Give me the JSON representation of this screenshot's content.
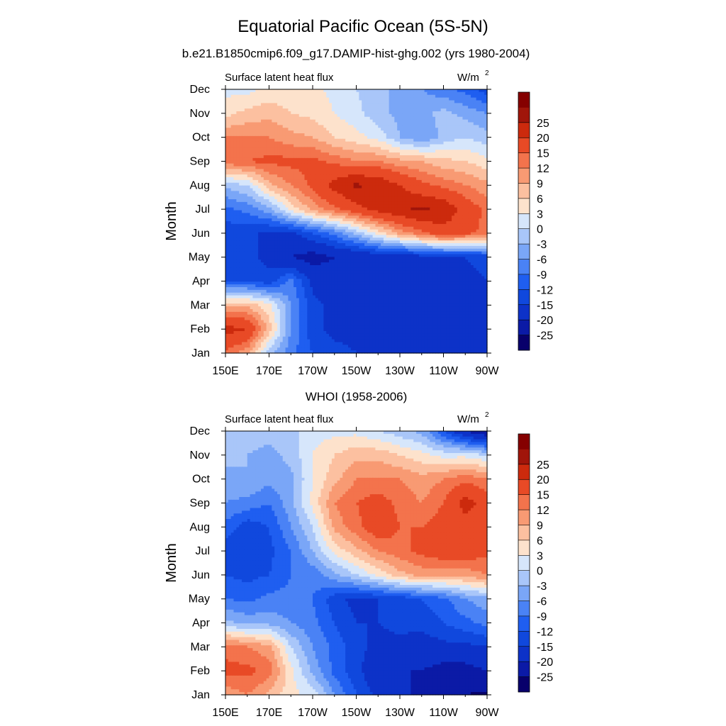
{
  "figure": {
    "title": "Equatorial Pacific Ocean (5S-5N)",
    "subtitle": "b.e21.B1850cmip6.f09_g17.DAMIP-hist-ghg.002 (yrs 1980-2004)"
  },
  "colorbar": {
    "levels": [
      -25,
      -20,
      -15,
      -12,
      -9,
      -6,
      -3,
      0,
      3,
      6,
      9,
      12,
      15,
      20,
      25
    ],
    "colors": [
      "#08006b",
      "#0b1aa6",
      "#0d32c8",
      "#1048dd",
      "#1f5ef0",
      "#4a82f5",
      "#7aa6f7",
      "#a9c6f9",
      "#d6e6fb",
      "#fde2cc",
      "#fcc0a0",
      "#f89a73",
      "#f3734c",
      "#e84a26",
      "#cc2a0d",
      "#a0150a",
      "#850000"
    ]
  },
  "chart_data": [
    {
      "type": "heatmap",
      "title": "",
      "left_label": "Surface latent heat flux",
      "units": "W/m",
      "units_superscript": "2",
      "xlabel": "",
      "ylabel": "Month",
      "x_ticks": [
        "150E",
        "170E",
        "170W",
        "150W",
        "130W",
        "110W",
        "90W"
      ],
      "xlim": [
        150,
        270
      ],
      "y_ticks": [
        "Jan",
        "Feb",
        "Mar",
        "Apr",
        "May",
        "Jun",
        "Jul",
        "Aug",
        "Sep",
        "Oct",
        "Nov",
        "Dec"
      ],
      "ylim": [
        1,
        12
      ],
      "x_grid": [
        150,
        160,
        170,
        180,
        190,
        200,
        210,
        220,
        230,
        240,
        250,
        260,
        270
      ],
      "values": [
        [
          14,
          10,
          -2,
          -8,
          -12,
          -14,
          -15,
          -16,
          -16,
          -16,
          -17,
          -18,
          -18
        ],
        [
          22,
          20,
          8,
          -6,
          -14,
          -16,
          -16,
          -18,
          -18,
          -18,
          -19,
          -19,
          -18
        ],
        [
          8,
          8,
          4,
          -6,
          -14,
          -16,
          -16,
          -16,
          -16,
          -16,
          -17,
          -17,
          -16
        ],
        [
          -12,
          -12,
          -14,
          -8,
          -16,
          -18,
          -18,
          -18,
          -18,
          -17,
          -16,
          -16,
          -15
        ],
        [
          -14,
          -14,
          -16,
          -20,
          -22,
          -20,
          -20,
          -18,
          -18,
          -17,
          -16,
          -15,
          -14
        ],
        [
          -14,
          -14,
          -16,
          -16,
          -12,
          -8,
          -2,
          4,
          10,
          14,
          18,
          16,
          14
        ],
        [
          -10,
          -8,
          -4,
          4,
          10,
          14,
          18,
          22,
          24,
          26,
          24,
          18,
          14
        ],
        [
          -2,
          0,
          8,
          12,
          16,
          22,
          26,
          24,
          20,
          16,
          14,
          12,
          10
        ],
        [
          14,
          15,
          16,
          16,
          16,
          14,
          12,
          12,
          10,
          9,
          7,
          6,
          4
        ],
        [
          12,
          12,
          12,
          10,
          9,
          6,
          4,
          2,
          -3,
          -6,
          -2,
          0,
          -2
        ],
        [
          5,
          7,
          8,
          6,
          5,
          3,
          1,
          -2,
          -4,
          -4,
          -2,
          -4,
          -6
        ],
        [
          2,
          2,
          4,
          4,
          4,
          2,
          0,
          -2,
          -4,
          -6,
          -8,
          -10,
          -14
        ]
      ]
    },
    {
      "type": "heatmap",
      "title": "WHOI (1958-2006)",
      "left_label": "Surface latent heat flux",
      "units": "W/m",
      "units_superscript": "2",
      "xlabel": "",
      "ylabel": "Month",
      "x_ticks": [
        "150E",
        "170E",
        "170W",
        "150W",
        "130W",
        "110W",
        "90W"
      ],
      "xlim": [
        150,
        270
      ],
      "y_ticks": [
        "Jan",
        "Feb",
        "Mar",
        "Apr",
        "May",
        "Jun",
        "Jul",
        "Aug",
        "Sep",
        "Oct",
        "Nov",
        "Dec"
      ],
      "ylim": [
        1,
        12
      ],
      "x_grid": [
        150,
        160,
        170,
        180,
        190,
        200,
        210,
        220,
        230,
        240,
        250,
        260,
        270
      ],
      "values": [
        [
          10,
          12,
          8,
          4,
          2,
          -6,
          -12,
          -16,
          -18,
          -22,
          -20,
          -25,
          -26
        ],
        [
          16,
          16,
          14,
          4,
          -4,
          -10,
          -14,
          -18,
          -20,
          -20,
          -22,
          -22,
          -20
        ],
        [
          14,
          12,
          10,
          0,
          -6,
          -10,
          -14,
          -16,
          -16,
          -17,
          -16,
          -16,
          -15
        ],
        [
          -2,
          -4,
          -4,
          -6,
          -8,
          -12,
          -15,
          -15,
          -14,
          -14,
          -12,
          -10,
          -8
        ],
        [
          -9,
          -10,
          -8,
          -8,
          -9,
          -14,
          -16,
          -15,
          -14,
          -12,
          -10,
          -6,
          -4
        ],
        [
          -12,
          -13,
          -12,
          -9,
          -8,
          -4,
          0,
          4,
          8,
          10,
          10,
          10,
          12
        ],
        [
          -14,
          -15,
          -13,
          -9,
          -3,
          4,
          8,
          12,
          14,
          16,
          18,
          18,
          16
        ],
        [
          -10,
          -14,
          -12,
          -6,
          0,
          10,
          14,
          18,
          15,
          15,
          17,
          18,
          16
        ],
        [
          -6,
          -7,
          -9,
          -4,
          4,
          12,
          15,
          17,
          14,
          12,
          15,
          22,
          18
        ],
        [
          -4,
          -3,
          -5,
          -4,
          3,
          8,
          12,
          12,
          12,
          10,
          12,
          14,
          12
        ],
        [
          -2,
          -3,
          -4,
          -2,
          3,
          6,
          8,
          8,
          6,
          4,
          2,
          2,
          0
        ],
        [
          0,
          -1,
          -2,
          -1,
          2,
          2,
          2,
          0,
          -2,
          -4,
          -12,
          -20,
          -25
        ]
      ]
    }
  ]
}
